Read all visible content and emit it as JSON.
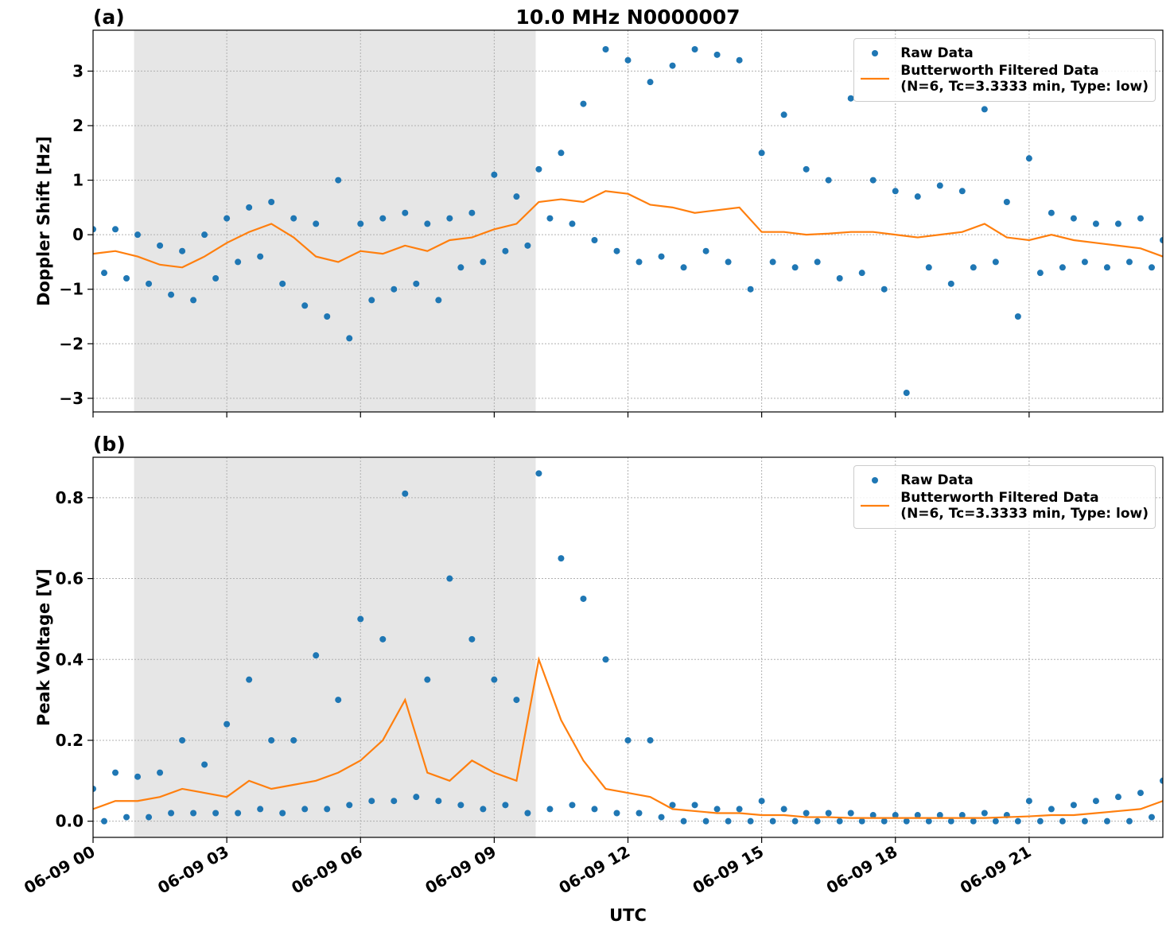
{
  "chart_data": [
    {
      "type": "line",
      "label": "(a)",
      "title": "10.0 MHz N0000007",
      "ylabel": "Doppler Shift [Hz]",
      "xlim": [
        0,
        24
      ],
      "xticks": [
        0,
        3,
        6,
        9,
        12,
        15,
        18,
        21
      ],
      "ylim": [
        -3.25,
        3.75
      ],
      "yticks": [
        {
          "value": -3,
          "label": "−3"
        },
        {
          "value": -2,
          "label": "−2"
        },
        {
          "value": -1,
          "label": "−1"
        },
        0,
        1,
        2,
        3
      ],
      "grid": true,
      "shade": [
        0.92,
        9.93
      ],
      "legend": "upper right",
      "series": [
        {
          "name": "Raw Data",
          "mode": "markers",
          "color": "#1f77b4",
          "x": [
            0,
            0.25,
            0.5,
            0.75,
            1,
            1.25,
            1.5,
            1.75,
            2,
            2.25,
            2.5,
            2.75,
            3,
            3.25,
            3.5,
            3.75,
            4,
            4.25,
            4.5,
            4.75,
            5,
            5.25,
            5.5,
            5.75,
            6,
            6.25,
            6.5,
            6.75,
            7,
            7.25,
            7.5,
            7.75,
            8,
            8.25,
            8.5,
            8.75,
            9,
            9.25,
            9.5,
            9.75,
            10,
            10.25,
            10.5,
            10.75,
            11,
            11.25,
            11.5,
            11.75,
            12,
            12.25,
            12.5,
            12.75,
            13,
            13.25,
            13.5,
            13.75,
            14,
            14.25,
            14.5,
            14.75,
            15,
            15.25,
            15.5,
            15.75,
            16,
            16.25,
            16.5,
            16.75,
            17,
            17.25,
            17.5,
            17.75,
            18,
            18.25,
            18.5,
            18.75,
            19,
            19.25,
            19.5,
            19.75,
            20,
            20.25,
            20.5,
            20.75,
            21,
            21.25,
            21.5,
            21.75,
            22,
            22.25,
            22.5,
            22.75,
            23,
            23.25,
            23.5,
            23.75,
            24
          ],
          "values": [
            0.1,
            -0.7,
            0.1,
            -0.8,
            0.0,
            -0.9,
            -0.2,
            -1.1,
            -0.3,
            -1.2,
            0.0,
            -0.8,
            0.3,
            -0.5,
            0.5,
            -0.4,
            0.6,
            -0.9,
            0.3,
            -1.3,
            0.2,
            -1.5,
            1.0,
            -1.9,
            0.2,
            -1.2,
            0.3,
            -1.0,
            0.4,
            -0.9,
            0.2,
            -1.2,
            0.3,
            -0.6,
            0.4,
            -0.5,
            1.1,
            -0.3,
            0.7,
            -0.2,
            1.2,
            0.3,
            1.5,
            0.2,
            2.4,
            -0.1,
            3.4,
            -0.3,
            3.2,
            -0.5,
            2.8,
            -0.4,
            3.1,
            -0.6,
            3.4,
            -0.3,
            3.3,
            -0.5,
            3.2,
            -1.0,
            1.5,
            -0.5,
            2.2,
            -0.6,
            1.2,
            -0.5,
            1.0,
            -0.8,
            2.5,
            -0.7,
            1.0,
            -1.0,
            0.8,
            -2.9,
            0.7,
            -0.6,
            0.9,
            -0.9,
            0.8,
            -0.6,
            2.3,
            -0.5,
            0.6,
            -1.5,
            1.4,
            -0.7,
            0.4,
            -0.6,
            0.3,
            -0.5,
            0.2,
            -0.6,
            0.2,
            -0.5,
            0.3,
            -0.6,
            -0.1
          ]
        },
        {
          "name": "Butterworth Filtered Data\n(N=6, Tc=3.3333 min, Type: low)",
          "mode": "line",
          "color": "#ff7f0e",
          "x": [
            0,
            0.5,
            1,
            1.5,
            2,
            2.5,
            3,
            3.5,
            4,
            4.5,
            5,
            5.5,
            6,
            6.5,
            7,
            7.5,
            8,
            8.5,
            9,
            9.5,
            10,
            10.5,
            11,
            11.5,
            12,
            12.5,
            13,
            13.5,
            14,
            14.5,
            15,
            15.5,
            16,
            16.5,
            17,
            17.5,
            18,
            18.5,
            19,
            19.5,
            20,
            20.5,
            21,
            21.5,
            22,
            22.5,
            23,
            23.5,
            24
          ],
          "values": [
            -0.35,
            -0.3,
            -0.4,
            -0.55,
            -0.6,
            -0.4,
            -0.15,
            0.05,
            0.2,
            -0.05,
            -0.4,
            -0.5,
            -0.3,
            -0.35,
            -0.2,
            -0.3,
            -0.1,
            -0.05,
            0.1,
            0.2,
            0.6,
            0.65,
            0.6,
            0.8,
            0.75,
            0.55,
            0.5,
            0.4,
            0.45,
            0.5,
            0.05,
            0.05,
            0.0,
            0.02,
            0.05,
            0.05,
            0.0,
            -0.05,
            0.0,
            0.05,
            0.2,
            -0.05,
            -0.1,
            0.0,
            -0.1,
            -0.15,
            -0.2,
            -0.25,
            -0.4
          ]
        }
      ]
    },
    {
      "type": "line",
      "label": "(b)",
      "ylabel": "Peak Voltage [V]",
      "xlabel": "UTC",
      "xlim": [
        0,
        24
      ],
      "xticks": [
        {
          "value": 0,
          "label": "06-09 00"
        },
        {
          "value": 3,
          "label": "06-09 03"
        },
        {
          "value": 6,
          "label": "06-09 06"
        },
        {
          "value": 9,
          "label": "06-09 09"
        },
        {
          "value": 12,
          "label": "06-09 12"
        },
        {
          "value": 15,
          "label": "06-09 15"
        },
        {
          "value": 18,
          "label": "06-09 18"
        },
        {
          "value": 21,
          "label": "06-09 21"
        }
      ],
      "ylim": [
        -0.04,
        0.9
      ],
      "yticks": [
        {
          "value": 0,
          "label": "0.0"
        },
        0.2,
        0.4,
        0.6,
        0.8
      ],
      "grid": true,
      "shade": [
        0.92,
        9.93
      ],
      "legend": "upper right",
      "series": [
        {
          "name": "Raw Data",
          "mode": "markers",
          "color": "#1f77b4",
          "x": [
            0,
            0.25,
            0.5,
            0.75,
            1,
            1.25,
            1.5,
            1.75,
            2,
            2.25,
            2.5,
            2.75,
            3,
            3.25,
            3.5,
            3.75,
            4,
            4.25,
            4.5,
            4.75,
            5,
            5.25,
            5.5,
            5.75,
            6,
            6.25,
            6.5,
            6.75,
            7,
            7.25,
            7.5,
            7.75,
            8,
            8.25,
            8.5,
            8.75,
            9,
            9.25,
            9.5,
            9.75,
            10,
            10.25,
            10.5,
            10.75,
            11,
            11.25,
            11.5,
            11.75,
            12,
            12.25,
            12.5,
            12.75,
            13,
            13.25,
            13.5,
            13.75,
            14,
            14.25,
            14.5,
            14.75,
            15,
            15.25,
            15.5,
            15.75,
            16,
            16.25,
            16.5,
            16.75,
            17,
            17.25,
            17.5,
            17.75,
            18,
            18.25,
            18.5,
            18.75,
            19,
            19.25,
            19.5,
            19.75,
            20,
            20.25,
            20.5,
            20.75,
            21,
            21.25,
            21.5,
            21.75,
            22,
            22.25,
            22.5,
            22.75,
            23,
            23.25,
            23.5,
            23.75,
            24
          ],
          "values": [
            0.08,
            0.0,
            0.12,
            0.01,
            0.11,
            0.01,
            0.12,
            0.02,
            0.2,
            0.02,
            0.14,
            0.02,
            0.24,
            0.02,
            0.35,
            0.03,
            0.2,
            0.02,
            0.2,
            0.03,
            0.41,
            0.03,
            0.3,
            0.04,
            0.5,
            0.05,
            0.45,
            0.05,
            0.81,
            0.06,
            0.35,
            0.05,
            0.6,
            0.04,
            0.45,
            0.03,
            0.35,
            0.04,
            0.3,
            0.02,
            0.86,
            0.03,
            0.65,
            0.04,
            0.55,
            0.03,
            0.4,
            0.02,
            0.2,
            0.02,
            0.2,
            0.01,
            0.04,
            0.0,
            0.04,
            0.0,
            0.03,
            0.0,
            0.03,
            0.0,
            0.05,
            0.0,
            0.03,
            0.0,
            0.02,
            0.0,
            0.02,
            0.0,
            0.02,
            0.0,
            0.015,
            0.0,
            0.015,
            0.0,
            0.015,
            0.0,
            0.015,
            0.0,
            0.015,
            0.0,
            0.02,
            0.0,
            0.015,
            0.0,
            0.05,
            0.0,
            0.03,
            0.0,
            0.04,
            0.0,
            0.05,
            0.0,
            0.06,
            0.0,
            0.07,
            0.01,
            0.1
          ]
        },
        {
          "name": "Butterworth Filtered Data\n(N=6, Tc=3.3333 min, Type: low)",
          "mode": "line",
          "color": "#ff7f0e",
          "x": [
            0,
            0.5,
            1,
            1.5,
            2,
            2.5,
            3,
            3.5,
            4,
            4.5,
            5,
            5.5,
            6,
            6.5,
            7,
            7.5,
            8,
            8.5,
            9,
            9.5,
            10,
            10.5,
            11,
            11.5,
            12,
            12.5,
            13,
            13.5,
            14,
            14.5,
            15,
            15.5,
            16,
            16.5,
            17,
            17.5,
            18,
            18.5,
            19,
            19.5,
            20,
            20.5,
            21,
            21.5,
            22,
            22.5,
            23,
            23.5,
            24
          ],
          "values": [
            0.03,
            0.05,
            0.05,
            0.06,
            0.08,
            0.07,
            0.06,
            0.1,
            0.08,
            0.09,
            0.1,
            0.12,
            0.15,
            0.2,
            0.3,
            0.12,
            0.1,
            0.15,
            0.12,
            0.1,
            0.4,
            0.25,
            0.15,
            0.08,
            0.07,
            0.06,
            0.03,
            0.025,
            0.02,
            0.02,
            0.015,
            0.015,
            0.01,
            0.01,
            0.008,
            0.008,
            0.008,
            0.008,
            0.008,
            0.008,
            0.008,
            0.01,
            0.012,
            0.015,
            0.015,
            0.02,
            0.025,
            0.03,
            0.05
          ]
        }
      ]
    }
  ]
}
